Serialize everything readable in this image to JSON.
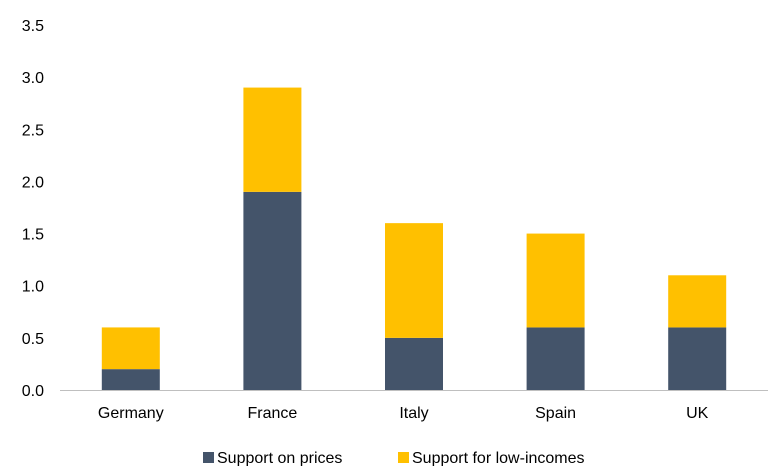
{
  "chart_data": {
    "type": "bar",
    "stacked": true,
    "categories": [
      "Germany",
      "France",
      "Italy",
      "Spain",
      "UK"
    ],
    "series": [
      {
        "name": "Support on prices",
        "values": [
          0.2,
          1.9,
          0.5,
          0.6,
          0.6
        ],
        "color": "#44546a"
      },
      {
        "name": "Support for low-incomes",
        "values": [
          0.4,
          1.0,
          1.1,
          0.9,
          0.5
        ],
        "color": "#ffc000"
      }
    ],
    "title": "",
    "xlabel": "",
    "ylabel": "",
    "ylim": [
      0,
      3.5
    ],
    "yticks": [
      "0.0",
      "0.5",
      "1.0",
      "1.5",
      "2.0",
      "2.5",
      "3.0",
      "3.5"
    ],
    "grid": false,
    "legend": "bottom"
  }
}
